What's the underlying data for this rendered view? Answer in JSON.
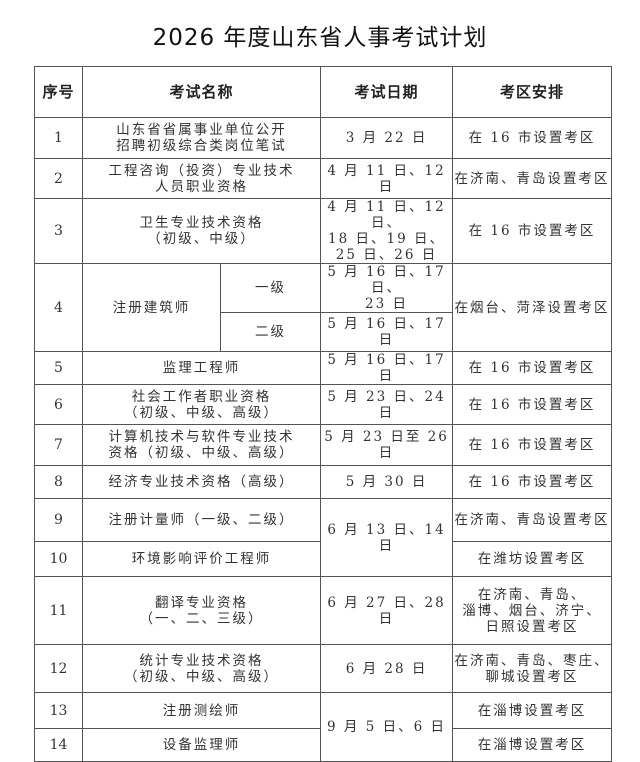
{
  "title": "2026 年度山东省人事考试计划",
  "headers": {
    "seq": "序号",
    "name": "考试名称",
    "date": "考试日期",
    "venue": "考区安排"
  },
  "rows": [
    {
      "seq": "1",
      "name": "山东省省属事业单位公开\n招聘初级综合类岗位笔试",
      "date": "3 月 22 日",
      "venue": "在 16 市设置考区"
    },
    {
      "seq": "2",
      "name": "工程咨询（投资）专业技术\n人员职业资格",
      "date": "4 月 11 日、12 日",
      "venue": "在济南、青岛设置考区"
    },
    {
      "seq": "3",
      "name": "卫生专业技术资格\n（初级、中级）",
      "date": "4 月 11 日、12 日、\n18 日、19 日、\n25 日、26 日",
      "venue": "在 16 市设置考区"
    },
    {
      "seq": "4",
      "name": "注册建筑师",
      "sub": [
        {
          "level": "一级",
          "date": "5 月 16 日、17 日、\n23 日"
        },
        {
          "level": "二级",
          "date": "5 月 16 日、17 日"
        }
      ],
      "venue": "在烟台、菏泽设置考区"
    },
    {
      "seq": "5",
      "name": "监理工程师",
      "date": "5 月 16 日、17 日",
      "venue": "在 16 市设置考区"
    },
    {
      "seq": "6",
      "name": "社会工作者职业资格\n（初级、中级、高级）",
      "date": "5 月 23 日、24 日",
      "venue": "在 16 市设置考区"
    },
    {
      "seq": "7",
      "name": "计算机技术与软件专业技术\n资格（初级、中级、高级）",
      "date": "5 月 23 日至 26 日",
      "venue": "在 16 市设置考区"
    },
    {
      "seq": "8",
      "name": "经济专业技术资格（高级）",
      "date": "5 月 30 日",
      "venue": "在 16 市设置考区"
    },
    {
      "seq": "9",
      "name": "注册计量师（一级、二级）",
      "date": "6 月 13 日、14 日",
      "venue": "在济南、青岛设置考区"
    },
    {
      "seq": "10",
      "name": "环境影响评价工程师",
      "venue": "在潍坊设置考区"
    },
    {
      "seq": "11",
      "name": "翻译专业资格\n（一、二、三级）",
      "date": "6 月 27 日、28 日",
      "venue": "在济南、青岛、\n淄博、烟台、济宁、\n日照设置考区"
    },
    {
      "seq": "12",
      "name": "统计专业技术资格\n（初级、中级、高级）",
      "date": "6 月 28 日",
      "venue": "在济南、青岛、枣庄、\n聊城设置考区"
    },
    {
      "seq": "13",
      "name": "注册测绘师",
      "date": "9 月 5 日、6 日",
      "venue": "在淄博设置考区"
    },
    {
      "seq": "14",
      "name": "设备监理师",
      "venue": "在淄博设置考区"
    }
  ]
}
